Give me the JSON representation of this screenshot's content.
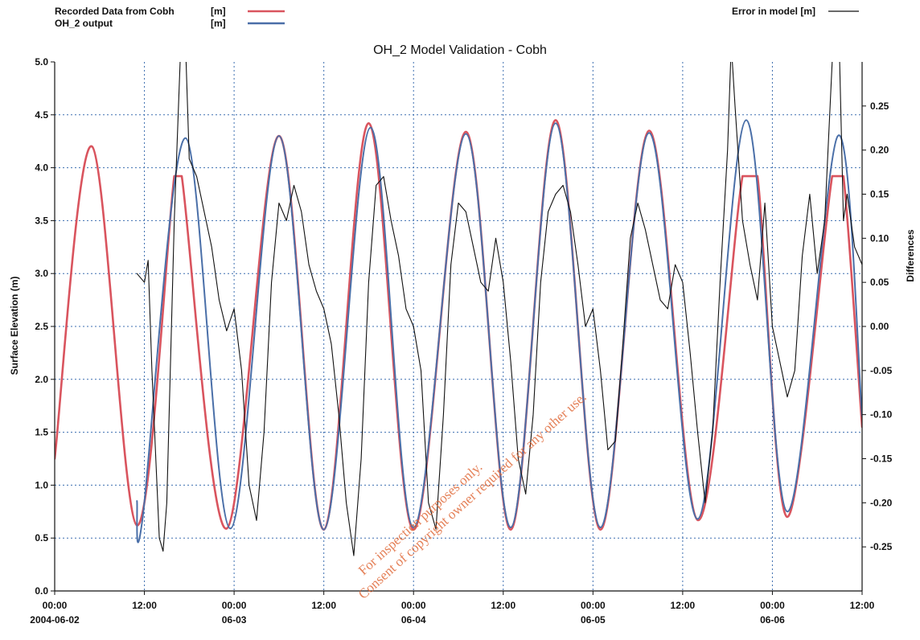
{
  "chart_data": {
    "type": "line",
    "title": "OH_2 Model Validation - Cobh",
    "ylabel": "Surface Elevation (m)",
    "y2label": "Differences",
    "ylim": [
      0.0,
      5.0
    ],
    "y2lim": [
      -0.3,
      0.3
    ],
    "yticks": [
      "0.0",
      "0.5",
      "1.0",
      "1.5",
      "2.0",
      "2.5",
      "3.0",
      "3.5",
      "4.0",
      "4.5",
      "5.0"
    ],
    "y2ticks": [
      "-0.25",
      "-0.20",
      "-0.15",
      "-0.10",
      "-0.05",
      "0.00",
      "0.05",
      "0.10",
      "0.15",
      "0.20",
      "0.25"
    ],
    "xlim": [
      "2004-06-02 00:00",
      "2004-06-06 12:00"
    ],
    "xticks": [
      {
        "time": "00:00",
        "date": "2004-06-02"
      },
      {
        "time": "12:00",
        "date": ""
      },
      {
        "time": "00:00",
        "date": "06-03"
      },
      {
        "time": "12:00",
        "date": ""
      },
      {
        "time": "00:00",
        "date": "06-04"
      },
      {
        "time": "12:00",
        "date": ""
      },
      {
        "time": "00:00",
        "date": "06-05"
      },
      {
        "time": "12:00",
        "date": ""
      },
      {
        "time": "00:00",
        "date": "06-06"
      },
      {
        "time": "12:00",
        "date": ""
      }
    ],
    "grid": true,
    "legend": [
      {
        "label": "Recorded Data from Cobh",
        "unit": "[m]",
        "color": "#d9545e",
        "placement": "top-left"
      },
      {
        "label": "OH_2 output",
        "unit": "[m]",
        "color": "#4a6fa8",
        "placement": "top-left"
      },
      {
        "label": "Error in model [m]",
        "unit": "",
        "color": "#111111",
        "placement": "top-right"
      }
    ],
    "series": [
      {
        "name": "Recorded Data from Cobh [m]",
        "axis": "left",
        "color": "#d9545e",
        "points": [
          [
            "06-02 00:00",
            1.25
          ],
          [
            "06-02 05:00",
            4.2
          ],
          [
            "06-02 11:00",
            0.62
          ],
          [
            "06-02 16:00",
            3.92
          ],
          [
            "06-02 17:00",
            3.92
          ],
          [
            "06-02 23:00",
            0.59
          ],
          [
            "06-03 06:00",
            4.3
          ],
          [
            "06-03 12:00",
            0.58
          ],
          [
            "06-03 18:00",
            4.42
          ],
          [
            "06-04 00:00",
            0.58
          ],
          [
            "06-04 07:00",
            4.34
          ],
          [
            "06-04 13:00",
            0.58
          ],
          [
            "06-04 19:00",
            4.45
          ],
          [
            "06-05 01:00",
            0.58
          ],
          [
            "06-05 07:30",
            4.35
          ],
          [
            "06-05 14:00",
            0.67
          ],
          [
            "06-05 20:00",
            3.92
          ],
          [
            "06-05 22:00",
            3.92
          ],
          [
            "06-06 02:00",
            0.7
          ],
          [
            "06-06 08:00",
            3.92
          ],
          [
            "06-06 09:30",
            3.92
          ],
          [
            "06-06 12:00",
            1.55
          ]
        ]
      },
      {
        "name": "OH_2 output [m]",
        "axis": "left",
        "color": "#4a6fa8",
        "points": [
          [
            "06-02 11:00",
            0.85
          ],
          [
            "06-02 11:45",
            0.68
          ],
          [
            "06-02 17:30",
            4.28
          ],
          [
            "06-02 23:30",
            0.59
          ],
          [
            "06-03 06:00",
            4.3
          ],
          [
            "06-03 12:00",
            0.58
          ],
          [
            "06-03 18:15",
            4.38
          ],
          [
            "06-04 00:00",
            0.6
          ],
          [
            "06-04 07:00",
            4.32
          ],
          [
            "06-04 13:00",
            0.6
          ],
          [
            "06-04 19:00",
            4.42
          ],
          [
            "06-05 01:00",
            0.6
          ],
          [
            "06-05 07:30",
            4.33
          ],
          [
            "06-05 14:00",
            0.68
          ],
          [
            "06-05 20:30",
            4.45
          ],
          [
            "06-06 02:00",
            0.75
          ],
          [
            "06-06 08:45",
            4.3
          ],
          [
            "06-06 12:00",
            1.65
          ]
        ]
      },
      {
        "name": "Error in model [m]",
        "axis": "right",
        "color": "#111111",
        "points": [
          [
            "06-02 11:00",
            0.06
          ],
          [
            "06-02 11:30",
            0.055
          ],
          [
            "06-02 12:00",
            0.05
          ],
          [
            "06-02 12:30",
            0.075
          ],
          [
            "06-02 13:00",
            -0.05
          ],
          [
            "06-02 14:00",
            -0.24
          ],
          [
            "06-02 14:30",
            -0.255
          ],
          [
            "06-02 15:00",
            -0.2
          ],
          [
            "06-02 16:00",
            0.12
          ],
          [
            "06-02 17:00",
            0.35
          ],
          [
            "06-02 17:30",
            0.32
          ],
          [
            "06-02 18:00",
            0.19
          ],
          [
            "06-02 19:00",
            0.17
          ],
          [
            "06-02 20:00",
            0.13
          ],
          [
            "06-02 21:00",
            0.09
          ],
          [
            "06-02 22:00",
            0.03
          ],
          [
            "06-02 23:00",
            -0.005
          ],
          [
            "06-03 00:00",
            0.02
          ],
          [
            "06-03 01:00",
            -0.05
          ],
          [
            "06-03 02:00",
            -0.18
          ],
          [
            "06-03 03:00",
            -0.22
          ],
          [
            "06-03 04:00",
            -0.12
          ],
          [
            "06-03 05:00",
            0.05
          ],
          [
            "06-03 06:00",
            0.14
          ],
          [
            "06-03 07:00",
            0.12
          ],
          [
            "06-03 08:00",
            0.16
          ],
          [
            "06-03 09:00",
            0.13
          ],
          [
            "06-03 10:00",
            0.07
          ],
          [
            "06-03 11:00",
            0.04
          ],
          [
            "06-03 12:00",
            0.02
          ],
          [
            "06-03 13:00",
            -0.02
          ],
          [
            "06-03 14:00",
            -0.1
          ],
          [
            "06-03 15:00",
            -0.2
          ],
          [
            "06-03 16:00",
            -0.26
          ],
          [
            "06-03 17:00",
            -0.15
          ],
          [
            "06-03 18:00",
            0.05
          ],
          [
            "06-03 19:00",
            0.16
          ],
          [
            "06-03 20:00",
            0.17
          ],
          [
            "06-03 21:00",
            0.12
          ],
          [
            "06-03 22:00",
            0.08
          ],
          [
            "06-03 23:00",
            0.02
          ],
          [
            "06-04 00:00",
            0.0
          ],
          [
            "06-04 01:00",
            -0.05
          ],
          [
            "06-04 02:00",
            -0.2
          ],
          [
            "06-04 03:00",
            -0.23
          ],
          [
            "06-04 04:00",
            -0.1
          ],
          [
            "06-04 05:00",
            0.07
          ],
          [
            "06-04 06:00",
            0.14
          ],
          [
            "06-04 07:00",
            0.13
          ],
          [
            "06-04 08:00",
            0.09
          ],
          [
            "06-04 09:00",
            0.05
          ],
          [
            "06-04 10:00",
            0.04
          ],
          [
            "06-04 11:00",
            0.1
          ],
          [
            "06-04 12:00",
            0.05
          ],
          [
            "06-04 13:00",
            -0.04
          ],
          [
            "06-04 14:00",
            -0.15
          ],
          [
            "06-04 15:00",
            -0.19
          ],
          [
            "06-04 16:00",
            -0.1
          ],
          [
            "06-04 17:00",
            0.05
          ],
          [
            "06-04 18:00",
            0.13
          ],
          [
            "06-04 19:00",
            0.15
          ],
          [
            "06-04 20:00",
            0.16
          ],
          [
            "06-04 21:00",
            0.13
          ],
          [
            "06-04 22:00",
            0.07
          ],
          [
            "06-04 23:00",
            0.0
          ],
          [
            "06-05 00:00",
            0.02
          ],
          [
            "06-05 01:00",
            -0.05
          ],
          [
            "06-05 02:00",
            -0.14
          ],
          [
            "06-05 03:00",
            -0.13
          ],
          [
            "06-05 04:00",
            -0.02
          ],
          [
            "06-05 05:00",
            0.1
          ],
          [
            "06-05 06:00",
            0.14
          ],
          [
            "06-05 07:00",
            0.11
          ],
          [
            "06-05 08:00",
            0.07
          ],
          [
            "06-05 09:00",
            0.03
          ],
          [
            "06-05 10:00",
            0.02
          ],
          [
            "06-05 11:00",
            0.07
          ],
          [
            "06-05 12:00",
            0.05
          ],
          [
            "06-05 13:00",
            -0.03
          ],
          [
            "06-05 14:00",
            -0.12
          ],
          [
            "06-05 15:00",
            -0.2
          ],
          [
            "06-05 16:00",
            -0.12
          ],
          [
            "06-05 17:00",
            0.05
          ],
          [
            "06-05 18:00",
            0.2
          ],
          [
            "06-05 18:30",
            0.32
          ],
          [
            "06-05 19:00",
            0.25
          ],
          [
            "06-05 20:00",
            0.12
          ],
          [
            "06-05 21:00",
            0.07
          ],
          [
            "06-05 22:00",
            0.03
          ],
          [
            "06-05 23:00",
            0.14
          ],
          [
            "06-06 00:00",
            0.0
          ],
          [
            "06-06 01:00",
            -0.04
          ],
          [
            "06-06 02:00",
            -0.08
          ],
          [
            "06-06 03:00",
            -0.05
          ],
          [
            "06-06 04:00",
            0.08
          ],
          [
            "06-06 05:00",
            0.15
          ],
          [
            "06-06 06:00",
            0.06
          ],
          [
            "06-06 07:00",
            0.12
          ],
          [
            "06-06 08:00",
            0.3
          ],
          [
            "06-06 08:30",
            0.34
          ],
          [
            "06-06 09:00",
            0.3
          ],
          [
            "06-06 09:30",
            0.12
          ],
          [
            "06-06 10:00",
            0.15
          ],
          [
            "06-06 11:00",
            0.09
          ],
          [
            "06-06 12:00",
            0.07
          ]
        ]
      }
    ]
  },
  "watermark": {
    "lines": [
      "For inspection purposes only.",
      "Consent of copyright owner required for any other use."
    ]
  }
}
